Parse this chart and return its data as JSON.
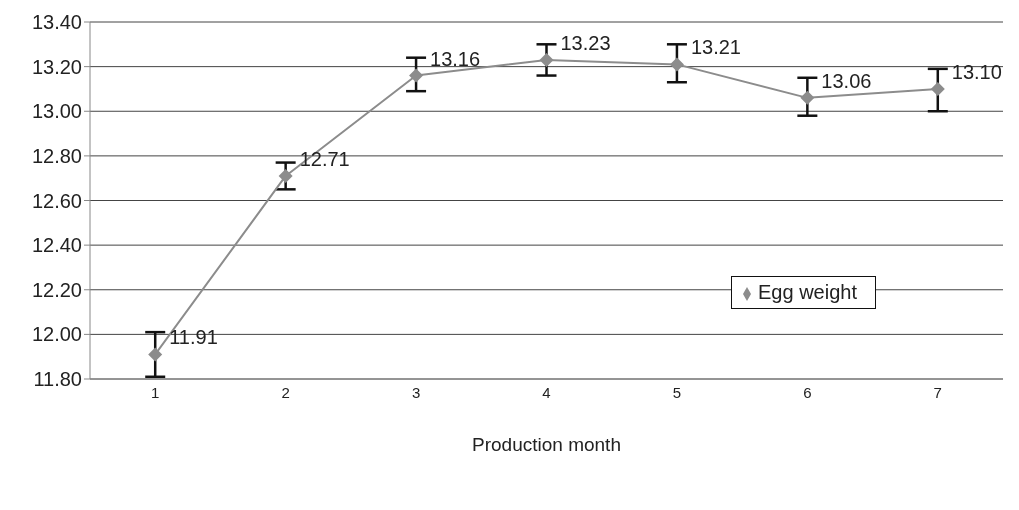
{
  "chart_data": {
    "type": "line",
    "xlabel": "Production month",
    "categories": [
      "1",
      "2",
      "3",
      "4",
      "5",
      "6",
      "7"
    ],
    "series": [
      {
        "name": "Egg weight",
        "color": "#8c8c8c",
        "values": [
          11.91,
          12.71,
          13.16,
          13.23,
          13.21,
          13.06,
          13.1
        ],
        "value_labels": [
          "11.91",
          "12.71",
          "13.16",
          "13.23",
          "13.21",
          "13.06",
          "13.10"
        ],
        "errors": [
          [
            11.81,
            12.01
          ],
          [
            12.65,
            12.77
          ],
          [
            13.09,
            13.24
          ],
          [
            13.16,
            13.3
          ],
          [
            13.13,
            13.3
          ],
          [
            12.98,
            13.15
          ],
          [
            13.0,
            13.19
          ]
        ]
      }
    ],
    "ylim": [
      11.8,
      13.4
    ],
    "yticks": [
      {
        "value": 11.8,
        "label": "11.80"
      },
      {
        "value": 12.0,
        "label": "12.00"
      },
      {
        "value": 12.2,
        "label": "12.20"
      },
      {
        "value": 12.4,
        "label": "12.40"
      },
      {
        "value": 12.6,
        "label": "12.60"
      },
      {
        "value": 12.8,
        "label": "12.80"
      },
      {
        "value": 13.0,
        "label": "13.00"
      },
      {
        "value": 13.2,
        "label": "13.20"
      },
      {
        "value": 13.4,
        "label": "13.40"
      }
    ],
    "grid": "y",
    "legend": "right",
    "marker": "diamond",
    "line_style": "solid"
  }
}
